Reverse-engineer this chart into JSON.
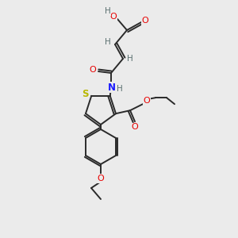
{
  "bg_color": "#ebebeb",
  "atom_colors": {
    "C": "#3a3a3a",
    "H": "#5a7070",
    "O": "#e80000",
    "N": "#1a1aff",
    "S": "#b8b800"
  },
  "bond_color": "#2a2a2a",
  "figsize": [
    3.0,
    3.0
  ],
  "dpi": 100,
  "lw": 1.4
}
